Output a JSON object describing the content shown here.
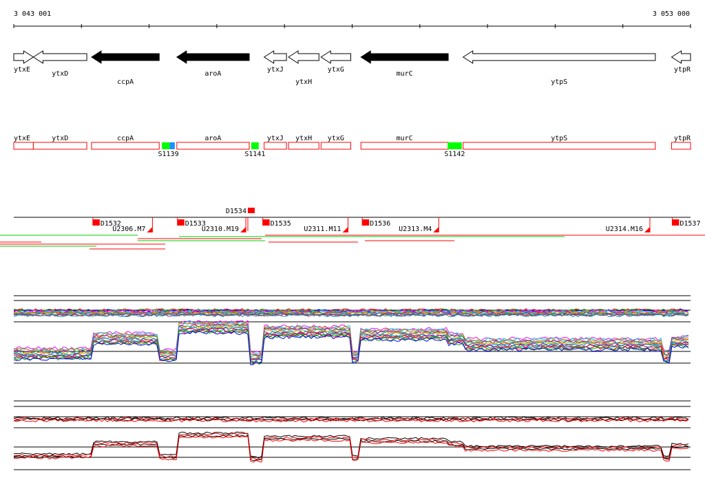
{
  "coords": {
    "start": "3 043 001",
    "end": "3 053 000",
    "start_bp": 3043001,
    "end_bp": 3053000
  },
  "colors": {
    "gene_filled": "#000000",
    "gene_open": "#ffffff",
    "box_outline": "#ff0000",
    "s_green": "#00ff00",
    "s_blue": "#1e90ff",
    "probe_red": "#ff0000",
    "ruler": "#000000"
  },
  "genes": [
    {
      "name": "ytxE",
      "start": 3043001,
      "end": 3043290,
      "strand": "+",
      "filled": false,
      "label_row": 0
    },
    {
      "name": "ytxD",
      "start": 3043290,
      "end": 3044080,
      "strand": "-",
      "filled": false,
      "label_row": 1
    },
    {
      "name": "ccpA",
      "start": 3044150,
      "end": 3045150,
      "strand": "-",
      "filled": true,
      "label_row": 2
    },
    {
      "name": "aroA",
      "start": 3045410,
      "end": 3046480,
      "strand": "-",
      "filled": true,
      "label_row": 1
    },
    {
      "name": "ytxJ",
      "start": 3046700,
      "end": 3047030,
      "strand": "-",
      "filled": false,
      "label_row": 0
    },
    {
      "name": "ytxH",
      "start": 3047060,
      "end": 3047510,
      "strand": "-",
      "filled": false,
      "label_row": 2
    },
    {
      "name": "ytxG",
      "start": 3047540,
      "end": 3047980,
      "strand": "-",
      "filled": false,
      "label_row": 0
    },
    {
      "name": "murC",
      "start": 3048130,
      "end": 3049420,
      "strand": "-",
      "filled": true,
      "label_row": 1
    },
    {
      "name": "ytpS",
      "start": 3049640,
      "end": 3052480,
      "strand": "-",
      "filled": false,
      "label_row": 2
    },
    {
      "name": "ytpR",
      "start": 3052720,
      "end": 3053000,
      "strand": "-",
      "filled": false,
      "label_row": 0
    }
  ],
  "features": [
    {
      "name": "ytxE",
      "start": 3043001,
      "end": 3043290
    },
    {
      "name": "ytxD",
      "start": 3043290,
      "end": 3044080
    },
    {
      "name": "ccpA",
      "start": 3044150,
      "end": 3045150
    },
    {
      "name": "aroA",
      "start": 3045410,
      "end": 3046480
    },
    {
      "name": "ytxJ",
      "start": 3046700,
      "end": 3047030
    },
    {
      "name": "ytxH",
      "start": 3047060,
      "end": 3047510
    },
    {
      "name": "ytxG",
      "start": 3047540,
      "end": 3047980
    },
    {
      "name": "murC",
      "start": 3048130,
      "end": 3049420
    },
    {
      "name": "ytpS",
      "start": 3049640,
      "end": 3052480
    },
    {
      "name": "ytpR",
      "start": 3052720,
      "end": 3053000
    }
  ],
  "s_regions": [
    {
      "name": "S1139",
      "start": 3045190,
      "end": 3045380
    },
    {
      "name": "S1141",
      "start": 3046510,
      "end": 3046620
    },
    {
      "name": "S1142",
      "start": 3049410,
      "end": 3049620
    }
  ],
  "d_probes": [
    {
      "name": "D1532",
      "pos": 3044210
    },
    {
      "name": "D1533",
      "pos": 3045460
    },
    {
      "name": "D1534",
      "pos": 3046510,
      "raised": true
    },
    {
      "name": "D1535",
      "pos": 3046720
    },
    {
      "name": "D1536",
      "pos": 3048190
    },
    {
      "name": "D1537",
      "pos": 3052770
    }
  ],
  "u_labels": [
    {
      "name": "U2306.M7",
      "pos": 3045070
    },
    {
      "name": "U2310.M19",
      "pos": 3046450
    },
    {
      "name": "U2311.M11",
      "pos": 3047960
    },
    {
      "name": "U2313.M4",
      "pos": 3049300
    },
    {
      "name": "U2314.M16",
      "pos": 3052420
    }
  ],
  "panel_top": {
    "upper_level": 0.5,
    "lower_level": 0.25
  },
  "panel_bottom": {
    "upper_level": 0.6,
    "lower_level": 0.25
  }
}
